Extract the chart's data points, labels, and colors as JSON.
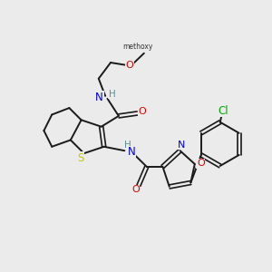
{
  "bg_color": "#ebebeb",
  "bond_color": "#1a1a1a",
  "atom_colors": {
    "N": "#0000e0",
    "O": "#e00000",
    "S": "#c8c800",
    "Cl": "#00aa00",
    "C": "#1a1a1a",
    "H": "#5a9090"
  }
}
